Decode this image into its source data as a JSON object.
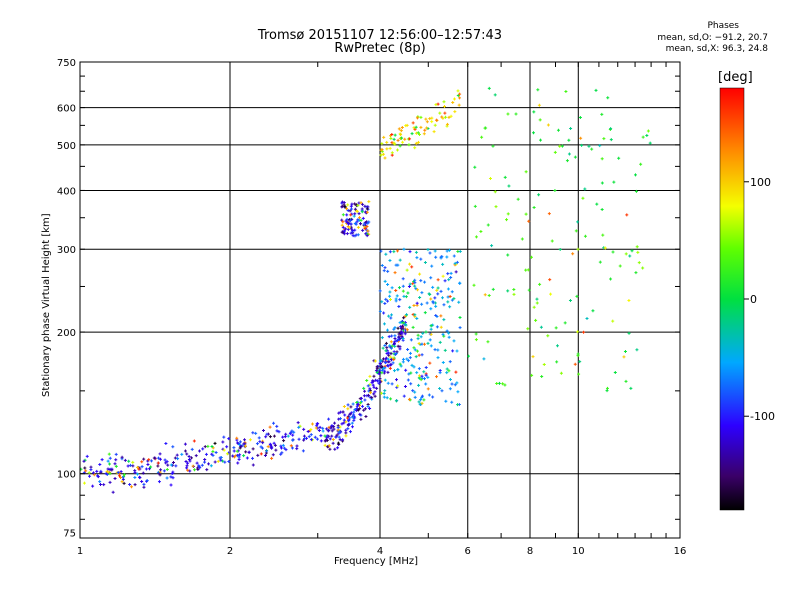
{
  "header": {
    "title": "Tromsø 20151107 12:56:00–12:57:43",
    "subtitle": "RwPretec (8p)",
    "phase_title": "Phases",
    "phase_o": "mean, sd,O: −91.2, 20.7",
    "phase_x": "mean, sd,X:  96.3, 24.8"
  },
  "chart_data": {
    "type": "scatter",
    "xlabel": "Frequency [MHz]",
    "ylabel": "Stationary phase Virtual Height [km]",
    "x_scale": "log",
    "y_scale": "log",
    "xlim": [
      1,
      16
    ],
    "ylim": [
      73,
      750
    ],
    "x_ticks": [
      1,
      2,
      4,
      6,
      8,
      10,
      16
    ],
    "y_ticks": [
      75,
      100,
      200,
      300,
      400,
      500,
      600,
      750
    ],
    "grid": true,
    "colorbar": {
      "label": "[deg]",
      "range": [
        -180,
        180
      ],
      "ticks": [
        100,
        0,
        -100
      ]
    },
    "point_groups": [
      {
        "name": "low-band trace",
        "x_range": [
          1.0,
          3.1
        ],
        "y_start": 100,
        "y_end": 125,
        "phase_mean": -110,
        "count": 320
      },
      {
        "name": "steepening trace",
        "x_range": [
          3.1,
          4.5
        ],
        "y_start": 120,
        "y_end": 210,
        "phase_mean": -115,
        "count": 260
      },
      {
        "name": "cluster 340 km",
        "x_range": [
          3.35,
          3.8
        ],
        "y_range": [
          320,
          380
        ],
        "phase_mean": -120,
        "count": 120
      },
      {
        "name": "mid-frequency spread",
        "x_range": [
          4.0,
          5.8
        ],
        "y_range": [
          140,
          300
        ],
        "phase_mean": -60,
        "count": 300
      },
      {
        "name": "upper branch",
        "x_range": [
          4.0,
          5.8
        ],
        "y_start": 500,
        "y_end": 620,
        "phase_mean": 90,
        "count": 90
      },
      {
        "name": "high-frequency scatter",
        "x_range": [
          6.0,
          14.0
        ],
        "y_range": [
          150,
          660
        ],
        "phase_mean": 20,
        "count": 160
      }
    ]
  }
}
